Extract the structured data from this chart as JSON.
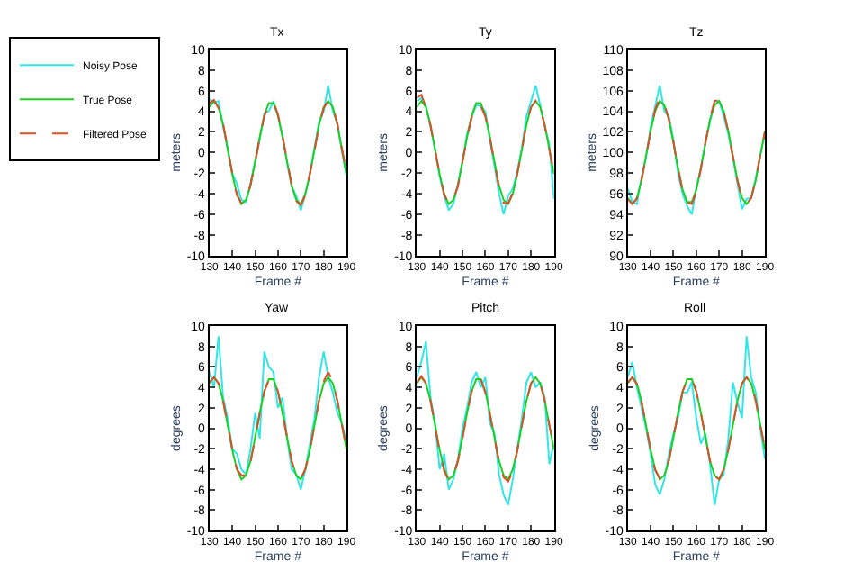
{
  "chart_data": [
    {
      "type": "line",
      "title": "Tx",
      "xlabel": "Frame #",
      "ylabel": "meters",
      "legend": "top left",
      "marker": "none",
      "x": [
        130,
        132,
        134,
        136,
        138,
        140,
        142,
        144,
        146,
        148,
        150,
        152,
        154,
        156,
        158,
        160,
        162,
        164,
        166,
        168,
        170,
        172,
        174,
        176,
        178,
        180,
        182,
        184,
        186,
        188,
        190
      ],
      "xlim": [
        130,
        190
      ],
      "xticks": [
        130,
        140,
        150,
        160,
        170,
        180,
        190
      ],
      "ylim": [
        -10,
        10
      ],
      "yticks": [
        -10,
        -8,
        -6,
        -4,
        -2,
        0,
        2,
        4,
        6,
        8,
        10
      ],
      "series": [
        {
          "name": "Noisy Pose",
          "color": "#33e6e6",
          "line_style": "solid",
          "values": [
            5.2,
            4.8,
            5.0,
            2.5,
            0.5,
            -2.0,
            -3.0,
            -4.6,
            -4.8,
            -3.0,
            -0.8,
            1.2,
            3.8,
            4.0,
            5.0,
            3.5,
            1.6,
            -1.0,
            -3.3,
            -4.2,
            -5.6,
            -4.0,
            -2.0,
            0.5,
            3.0,
            4.0,
            6.5,
            4.0,
            2.8,
            0.1,
            -2.3
          ]
        },
        {
          "name": "True Pose",
          "color": "#22cc22",
          "line_style": "solid",
          "values": [
            4.4,
            5.0,
            4.4,
            2.7,
            0.3,
            -2.1,
            -4.0,
            -5.0,
            -4.6,
            -3.2,
            -0.9,
            1.5,
            3.6,
            4.8,
            4.8,
            3.6,
            1.5,
            -0.9,
            -3.2,
            -4.6,
            -5.0,
            -4.0,
            -2.1,
            0.3,
            2.7,
            4.4,
            5.0,
            4.4,
            2.7,
            0.3,
            -2.1
          ]
        },
        {
          "name": "Filtered Pose",
          "color": "#d9502a",
          "line_style": "dashed",
          "values": [
            4.8,
            5.1,
            4.3,
            2.8,
            0.4,
            -2.0,
            -4.1,
            -4.9,
            -4.7,
            -3.1,
            -1.0,
            1.4,
            3.5,
            4.7,
            4.9,
            3.7,
            1.6,
            -0.8,
            -3.1,
            -4.7,
            -5.1,
            -4.1,
            -2.0,
            0.2,
            2.6,
            4.3,
            5.0,
            4.5,
            2.8,
            0.4,
            -2.0
          ]
        }
      ]
    },
    {
      "type": "line",
      "title": "Ty",
      "xlabel": "Frame #",
      "ylabel": "meters",
      "marker": "none",
      "x": [
        130,
        132,
        134,
        136,
        138,
        140,
        142,
        144,
        146,
        148,
        150,
        152,
        154,
        156,
        158,
        160,
        162,
        164,
        166,
        168,
        170,
        172,
        174,
        176,
        178,
        180,
        182,
        184,
        186,
        188,
        190
      ],
      "xlim": [
        130,
        190
      ],
      "xticks": [
        130,
        140,
        150,
        160,
        170,
        180,
        190
      ],
      "ylim": [
        -10,
        10
      ],
      "yticks": [
        -10,
        -8,
        -6,
        -4,
        -2,
        0,
        2,
        4,
        6,
        8,
        10
      ],
      "series": [
        {
          "color": "#33e6e6",
          "line_style": "solid",
          "values": [
            5.0,
            5.3,
            4.5,
            2.5,
            0.3,
            -2.3,
            -4.2,
            -5.6,
            -5.0,
            -3.0,
            -0.8,
            1.8,
            3.4,
            4.6,
            4.5,
            4.0,
            1.2,
            -1.3,
            -4.0,
            -6.0,
            -4.2,
            -3.5,
            -1.8,
            0.5,
            3.5,
            5.0,
            6.5,
            4.6,
            2.5,
            0.8,
            -4.5
          ]
        },
        {
          "color": "#22cc22",
          "line_style": "solid",
          "values": [
            4.4,
            5.0,
            4.4,
            2.7,
            0.3,
            -2.1,
            -4.0,
            -5.0,
            -4.6,
            -3.2,
            -0.9,
            1.5,
            3.6,
            4.8,
            4.8,
            3.6,
            1.5,
            -0.9,
            -3.2,
            -4.6,
            -5.0,
            -4.0,
            -2.1,
            0.3,
            2.7,
            4.4,
            5.0,
            4.4,
            2.7,
            0.3,
            -2.1
          ]
        },
        {
          "color": "#d9502a",
          "line_style": "dashed",
          "values": [
            5.3,
            5.6,
            4.4,
            2.6,
            0.2,
            -2.1,
            -4.1,
            -5.0,
            -4.5,
            -3.3,
            -0.9,
            1.4,
            3.4,
            4.5,
            4.5,
            3.5,
            1.4,
            -1.0,
            -3.4,
            -4.9,
            -4.9,
            -3.9,
            -2.0,
            0.3,
            2.8,
            4.4,
            5.0,
            4.3,
            2.6,
            0.3,
            -2.0
          ]
        }
      ]
    },
    {
      "type": "line",
      "title": "Tz",
      "xlabel": "Frame #",
      "ylabel": "meters",
      "marker": "none",
      "x": [
        130,
        132,
        134,
        136,
        138,
        140,
        142,
        144,
        146,
        148,
        150,
        152,
        154,
        156,
        158,
        160,
        162,
        164,
        166,
        168,
        170,
        172,
        174,
        176,
        178,
        180,
        182,
        184,
        186,
        188,
        190
      ],
      "xlim": [
        130,
        190
      ],
      "xticks": [
        130,
        140,
        150,
        160,
        170,
        180,
        190
      ],
      "ylim": [
        90,
        110
      ],
      "yticks": [
        90,
        92,
        94,
        96,
        98,
        100,
        102,
        104,
        106,
        108,
        110
      ],
      "series": [
        {
          "color": "#33e6e6",
          "line_style": "solid",
          "values": [
            96.5,
            95.2,
            95.0,
            97.6,
            99.5,
            102.5,
            104.5,
            106.5,
            104.0,
            103.5,
            101.2,
            98.0,
            96.0,
            94.8,
            94.0,
            96.5,
            98.5,
            101.0,
            103.0,
            105.0,
            105.0,
            103.5,
            101.8,
            99.5,
            97.0,
            94.5,
            95.5,
            95.6,
            97.5,
            99.8,
            101.8
          ]
        },
        {
          "color": "#22cc22",
          "line_style": "solid",
          "values": [
            95.6,
            95.0,
            95.6,
            97.3,
            99.7,
            102.1,
            104.0,
            105.0,
            104.6,
            103.2,
            100.9,
            98.5,
            96.4,
            95.2,
            95.2,
            96.4,
            98.5,
            100.9,
            103.2,
            104.6,
            105.0,
            104.0,
            102.1,
            99.7,
            97.3,
            95.6,
            95.0,
            95.6,
            97.3,
            99.7,
            102.1
          ]
        },
        {
          "color": "#d9502a",
          "line_style": "dashed",
          "values": [
            95.5,
            95.0,
            95.5,
            97.3,
            99.6,
            102.0,
            104.2,
            105.3,
            104.7,
            103.2,
            101.0,
            98.4,
            96.3,
            95.1,
            95.0,
            96.2,
            98.4,
            101.0,
            103.3,
            105.0,
            105.1,
            104.0,
            102.0,
            99.6,
            97.3,
            95.5,
            95.0,
            95.6,
            97.4,
            99.8,
            102.0
          ]
        }
      ]
    },
    {
      "type": "line",
      "title": "Yaw",
      "xlabel": "Frame #",
      "ylabel": "degrees",
      "marker": "none",
      "x": [
        130,
        132,
        134,
        136,
        138,
        140,
        142,
        144,
        146,
        148,
        150,
        152,
        154,
        156,
        158,
        160,
        162,
        164,
        166,
        168,
        170,
        172,
        174,
        176,
        178,
        180,
        182,
        184,
        186,
        188,
        190
      ],
      "xlim": [
        130,
        190
      ],
      "xticks": [
        130,
        140,
        150,
        160,
        170,
        180,
        190
      ],
      "ylim": [
        -10,
        10
      ],
      "yticks": [
        -10,
        -8,
        -6,
        -4,
        -2,
        0,
        2,
        4,
        6,
        8,
        10
      ],
      "series": [
        {
          "color": "#33e6e6",
          "line_style": "solid",
          "values": [
            5.5,
            4.0,
            9.0,
            3.0,
            1.0,
            -2.0,
            -2.5,
            -4.0,
            -4.5,
            -2.0,
            1.5,
            -1.0,
            7.5,
            6.0,
            5.5,
            2.0,
            3.0,
            -1.0,
            -4.0,
            -4.5,
            -6.0,
            -4.0,
            -1.5,
            1.0,
            5.0,
            7.5,
            5.0,
            3.5,
            1.5,
            0.5,
            -1.5
          ]
        },
        {
          "color": "#22cc22",
          "line_style": "solid",
          "values": [
            4.4,
            5.0,
            4.4,
            2.7,
            0.3,
            -2.1,
            -4.0,
            -5.0,
            -4.6,
            -3.2,
            -0.9,
            1.5,
            3.6,
            4.8,
            4.8,
            3.6,
            1.5,
            -0.9,
            -3.2,
            -4.6,
            -5.0,
            -4.0,
            -2.1,
            0.3,
            2.7,
            4.4,
            5.0,
            4.4,
            2.7,
            0.3,
            -2.1
          ]
        },
        {
          "color": "#d9502a",
          "line_style": "dashed",
          "values": [
            4.5,
            5.0,
            4.4,
            2.6,
            0.4,
            -2.0,
            -4.0,
            -4.6,
            -4.6,
            -3.3,
            -1.0,
            1.4,
            3.6,
            4.7,
            4.8,
            3.6,
            1.5,
            -0.9,
            -3.2,
            -4.6,
            -4.9,
            -4.0,
            -2.1,
            0.3,
            2.8,
            4.6,
            5.5,
            4.6,
            2.7,
            0.3,
            -2.0
          ]
        }
      ]
    },
    {
      "type": "line",
      "title": "Pitch",
      "xlabel": "Frame #",
      "ylabel": "degrees",
      "marker": "none",
      "x": [
        130,
        132,
        134,
        136,
        138,
        140,
        142,
        144,
        146,
        148,
        150,
        152,
        154,
        156,
        158,
        160,
        162,
        164,
        166,
        168,
        170,
        172,
        174,
        176,
        178,
        180,
        182,
        184,
        186,
        188,
        190
      ],
      "xlim": [
        130,
        190
      ],
      "xticks": [
        130,
        140,
        150,
        160,
        170,
        180,
        190
      ],
      "ylim": [
        -10,
        10
      ],
      "yticks": [
        -10,
        -8,
        -6,
        -4,
        -2,
        0,
        2,
        4,
        6,
        8,
        10
      ],
      "series": [
        {
          "color": "#33e6e6",
          "line_style": "solid",
          "values": [
            5.0,
            6.5,
            8.5,
            3.0,
            0.5,
            -4.0,
            -2.5,
            -6.0,
            -5.0,
            -3.0,
            0.0,
            2.0,
            4.5,
            5.5,
            4.0,
            5.0,
            0.5,
            -0.5,
            -4.5,
            -6.5,
            -7.5,
            -5.0,
            -2.0,
            1.0,
            4.5,
            5.5,
            4.0,
            4.5,
            3.0,
            -3.5,
            -1.5
          ]
        },
        {
          "color": "#22cc22",
          "line_style": "solid",
          "values": [
            4.4,
            5.0,
            4.4,
            2.7,
            0.3,
            -2.1,
            -4.0,
            -5.0,
            -4.6,
            -3.2,
            -0.9,
            1.5,
            3.6,
            4.8,
            4.8,
            3.6,
            1.5,
            -0.9,
            -3.2,
            -4.6,
            -5.0,
            -4.0,
            -2.1,
            0.3,
            2.7,
            4.4,
            5.0,
            4.4,
            2.7,
            0.3,
            -2.1
          ]
        },
        {
          "color": "#d9502a",
          "line_style": "dashed",
          "values": [
            4.5,
            5.1,
            4.4,
            2.7,
            0.2,
            -2.3,
            -4.2,
            -5.1,
            -4.6,
            -3.2,
            -1.0,
            1.5,
            3.6,
            4.8,
            4.8,
            3.5,
            1.3,
            -1.0,
            -3.3,
            -4.8,
            -5.2,
            -4.2,
            -2.2,
            0.3,
            2.7,
            4.4,
            5.0,
            4.4,
            2.7,
            0.3,
            -2.0
          ]
        }
      ]
    },
    {
      "type": "line",
      "title": "Roll",
      "xlabel": "Frame #",
      "ylabel": "degrees",
      "marker": "none",
      "x": [
        130,
        132,
        134,
        136,
        138,
        140,
        142,
        144,
        146,
        148,
        150,
        152,
        154,
        156,
        158,
        160,
        162,
        164,
        166,
        168,
        170,
        172,
        174,
        176,
        178,
        180,
        182,
        184,
        186,
        188,
        190
      ],
      "xlim": [
        130,
        190
      ],
      "xticks": [
        130,
        140,
        150,
        160,
        170,
        180,
        190
      ],
      "ylim": [
        -10,
        10
      ],
      "yticks": [
        -10,
        -8,
        -6,
        -4,
        -2,
        0,
        2,
        4,
        6,
        8,
        10
      ],
      "series": [
        {
          "color": "#33e6e6",
          "line_style": "solid",
          "values": [
            5.0,
            6.5,
            4.0,
            2.0,
            0.0,
            -2.5,
            -5.5,
            -6.5,
            -5.0,
            -2.5,
            -0.5,
            1.0,
            3.5,
            3.5,
            4.5,
            1.0,
            -1.5,
            -0.5,
            -3.5,
            -7.5,
            -5.0,
            -4.5,
            -1.0,
            4.5,
            2.5,
            1.0,
            9.0,
            5.0,
            3.5,
            0.0,
            -3.0
          ]
        },
        {
          "color": "#22cc22",
          "line_style": "solid",
          "values": [
            4.4,
            5.0,
            4.4,
            2.7,
            0.3,
            -2.1,
            -4.0,
            -5.0,
            -4.6,
            -3.2,
            -0.9,
            1.5,
            3.6,
            4.8,
            4.8,
            3.6,
            1.5,
            -0.9,
            -3.2,
            -4.6,
            -5.0,
            -4.0,
            -2.1,
            0.3,
            2.7,
            4.4,
            5.0,
            4.4,
            2.7,
            0.3,
            -2.1
          ]
        },
        {
          "color": "#d9502a",
          "line_style": "dashed",
          "values": [
            4.5,
            5.0,
            4.3,
            2.6,
            0.3,
            -2.1,
            -4.1,
            -4.9,
            -4.6,
            -3.1,
            -0.9,
            1.5,
            3.6,
            4.8,
            4.9,
            3.6,
            1.5,
            -0.9,
            -3.2,
            -4.7,
            -5.0,
            -4.0,
            -2.1,
            0.3,
            2.7,
            4.4,
            5.0,
            4.4,
            2.7,
            0.3,
            -1.9
          ]
        }
      ]
    }
  ]
}
